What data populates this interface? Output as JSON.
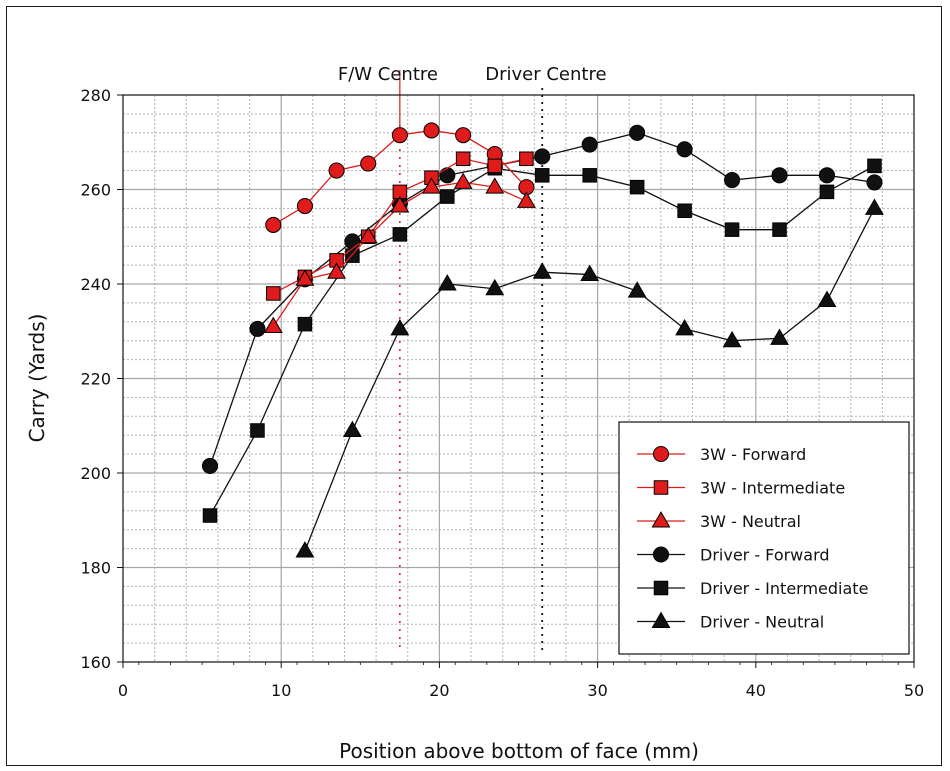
{
  "chart_data": {
    "type": "line",
    "title": "",
    "xlabel": "Position above bottom of face (mm)",
    "ylabel": "Carry (Yards)",
    "xlim": [
      0,
      50
    ],
    "ylim": [
      160,
      280
    ],
    "xticks": [
      "0",
      "10",
      "20",
      "30",
      "40",
      "50"
    ],
    "yticks": [
      "160",
      "180",
      "200",
      "220",
      "240",
      "260",
      "280"
    ],
    "grid": true,
    "legend_position": "bottom-right",
    "reference_lines": [
      {
        "label": "F/W Centre",
        "x": 17.5,
        "color": "#e01b1b"
      },
      {
        "label": "Driver Centre",
        "x": 26.5,
        "color": "#111111"
      }
    ],
    "series": [
      {
        "name": "3W - Forward",
        "marker": "circle",
        "color": "#e01b1b",
        "points": [
          [
            9.5,
            252.5
          ],
          [
            11.5,
            256.5
          ],
          [
            13.5,
            264
          ],
          [
            15.5,
            265.5
          ],
          [
            17.5,
            271.5
          ],
          [
            19.5,
            272.5
          ],
          [
            21.5,
            271.5
          ],
          [
            23.5,
            267.5
          ],
          [
            25.5,
            260.5
          ]
        ]
      },
      {
        "name": "3W - Intermediate",
        "marker": "square",
        "color": "#e01b1b",
        "points": [
          [
            9.5,
            238
          ],
          [
            11.5,
            241.5
          ],
          [
            13.5,
            245
          ],
          [
            15.5,
            250
          ],
          [
            17.5,
            259.5
          ],
          [
            19.5,
            262.5
          ],
          [
            21.5,
            266.5
          ],
          [
            23.5,
            265
          ],
          [
            25.5,
            266.5
          ]
        ]
      },
      {
        "name": "3W - Neutral",
        "marker": "triangle",
        "color": "#e01b1b",
        "points": [
          [
            9.5,
            231
          ],
          [
            11.5,
            241
          ],
          [
            13.5,
            242.5
          ],
          [
            15.5,
            250
          ],
          [
            17.5,
            256.5
          ],
          [
            19.5,
            260.5
          ],
          [
            21.5,
            261.5
          ],
          [
            23.5,
            260.5
          ],
          [
            25.5,
            257.5
          ]
        ]
      },
      {
        "name": "Driver - Forward",
        "marker": "circle",
        "color": "#111111",
        "points": [
          [
            5.5,
            201.5
          ],
          [
            8.5,
            230.5
          ],
          [
            11.5,
            241
          ],
          [
            14.5,
            249
          ],
          [
            17.5,
            257
          ],
          [
            20.5,
            263
          ],
          [
            23.5,
            265
          ],
          [
            26.5,
            267
          ],
          [
            29.5,
            269.5
          ],
          [
            32.5,
            272
          ],
          [
            35.5,
            268.5
          ],
          [
            38.5,
            262
          ],
          [
            41.5,
            263
          ],
          [
            44.5,
            263
          ],
          [
            47.5,
            261.5
          ]
        ]
      },
      {
        "name": "Driver - Intermediate",
        "marker": "square",
        "color": "#111111",
        "points": [
          [
            5.5,
            191
          ],
          [
            8.5,
            209
          ],
          [
            11.5,
            231.5
          ],
          [
            14.5,
            246
          ],
          [
            17.5,
            250.5
          ],
          [
            20.5,
            258.5
          ],
          [
            23.5,
            264.5
          ],
          [
            26.5,
            263
          ],
          [
            29.5,
            263
          ],
          [
            32.5,
            260.5
          ],
          [
            35.5,
            255.5
          ],
          [
            38.5,
            251.5
          ],
          [
            41.5,
            251.5
          ],
          [
            44.5,
            259.5
          ],
          [
            47.5,
            265
          ]
        ]
      },
      {
        "name": "Driver - Neutral",
        "marker": "triangle",
        "color": "#111111",
        "points": [
          [
            11.5,
            183.5
          ],
          [
            14.5,
            209
          ],
          [
            17.5,
            230.5
          ],
          [
            20.5,
            240
          ],
          [
            23.5,
            239
          ],
          [
            26.5,
            242.5
          ],
          [
            29.5,
            242
          ],
          [
            32.5,
            238.5
          ],
          [
            35.5,
            230.5
          ],
          [
            38.5,
            228
          ],
          [
            41.5,
            228.5
          ],
          [
            44.5,
            236.5
          ],
          [
            47.5,
            256
          ]
        ]
      }
    ]
  }
}
